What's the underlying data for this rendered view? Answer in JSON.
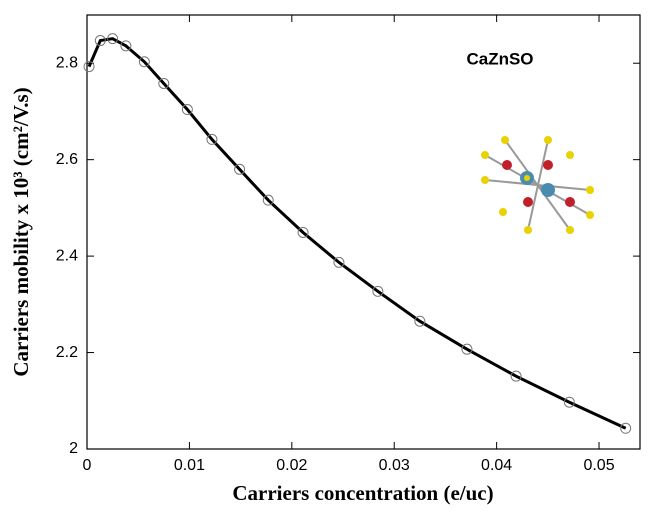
{
  "chart_data": {
    "type": "line",
    "x_label": "Carriers concentration (e/uc)",
    "y_label": "Carriers mobility x 10³ (cm²/V.s)",
    "annotation": "CaZnSO",
    "series": [
      {
        "color": "#000000",
        "x": [
          0.0002,
          0.0013,
          0.0025,
          0.0038,
          0.0056,
          0.0075,
          0.0098,
          0.0122,
          0.0149,
          0.0177,
          0.0211,
          0.0246,
          0.0284,
          0.0325,
          0.0371,
          0.0419,
          0.0471,
          0.0526
        ],
        "values": [
          2.793,
          2.847,
          2.851,
          2.836,
          2.803,
          2.758,
          2.704,
          2.642,
          2.58,
          2.516,
          2.449,
          2.387,
          2.327,
          2.265,
          2.207,
          2.151,
          2.097,
          2.043
        ]
      }
    ],
    "xlim": [
      0,
      0.054
    ],
    "xticks": [
      0,
      0.01,
      0.02,
      0.03,
      0.04,
      0.05
    ],
    "ylim": [
      2,
      2.9
    ],
    "yticks": [
      2,
      2.2,
      2.4,
      2.6,
      2.8
    ]
  }
}
